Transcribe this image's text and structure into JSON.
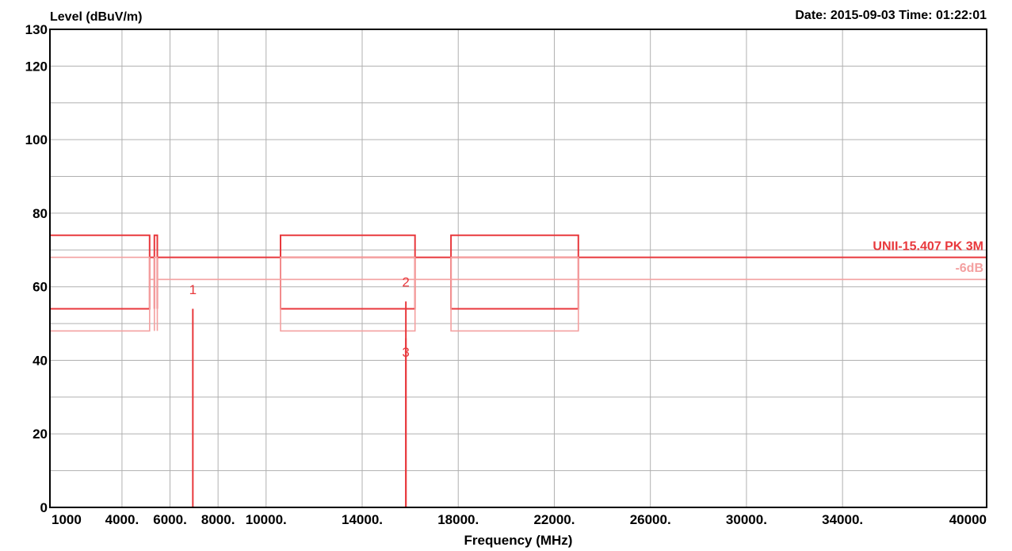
{
  "header": {
    "ylabel": "Level (dBuV/m)",
    "datetime": "Date: 2015-09-03  Time: 01:22:01"
  },
  "chart_data": {
    "type": "line",
    "xlabel": "Frequency (MHz)",
    "ylabel": "Level (dBuV/m)",
    "xlim": [
      1000,
      40000
    ],
    "ylim": [
      0,
      130
    ],
    "grid": true,
    "x_tick_labels": [
      {
        "v": 1000,
        "t": "1000"
      },
      {
        "v": 4000,
        "t": "4000."
      },
      {
        "v": 6000,
        "t": "6000."
      },
      {
        "v": 8000,
        "t": "8000."
      },
      {
        "v": 10000,
        "t": "10000."
      },
      {
        "v": 14000,
        "t": "14000."
      },
      {
        "v": 18000,
        "t": "18000."
      },
      {
        "v": 22000,
        "t": "22000."
      },
      {
        "v": 26000,
        "t": "26000."
      },
      {
        "v": 30000,
        "t": "30000."
      },
      {
        "v": 34000,
        "t": "34000."
      },
      {
        "v": 40000,
        "t": "40000"
      }
    ],
    "x_grid": [
      1000,
      4000,
      6000,
      8000,
      10000,
      14000,
      18000,
      22000,
      26000,
      30000,
      34000,
      40000
    ],
    "y_ticks": [
      0,
      20,
      40,
      60,
      80,
      100,
      120,
      130
    ],
    "y_grid": [
      0,
      10,
      20,
      30,
      40,
      50,
      60,
      70,
      80,
      90,
      100,
      110,
      120,
      130
    ],
    "series": [
      {
        "name": "UNII-15.407 PK 3M",
        "color": "#e8383c",
        "width": 2,
        "points": [
          [
            1000,
            74
          ],
          [
            5150,
            74
          ],
          [
            5150,
            54
          ],
          [
            1000,
            54
          ],
          [
            5150,
            54
          ],
          [
            5150,
            68
          ],
          [
            5350,
            68
          ],
          [
            5350,
            74
          ],
          [
            5350,
            54
          ],
          [
            5350,
            74
          ],
          [
            5470,
            74
          ],
          [
            5470,
            54
          ],
          [
            5470,
            68
          ],
          [
            10600,
            68
          ],
          [
            10600,
            74
          ],
          [
            16200,
            74
          ],
          [
            16200,
            54
          ],
          [
            10600,
            54
          ],
          [
            10600,
            68
          ],
          [
            16200,
            68
          ],
          [
            17700,
            68
          ],
          [
            17700,
            74
          ],
          [
            23000,
            74
          ],
          [
            23000,
            54
          ],
          [
            17700,
            54
          ],
          [
            17700,
            68
          ],
          [
            23000,
            68
          ],
          [
            40000,
            68
          ]
        ]
      },
      {
        "name": "-6dB",
        "color": "#f4a0a0",
        "width": 1.6,
        "points": [
          [
            1000,
            68
          ],
          [
            5150,
            68
          ],
          [
            5150,
            48
          ],
          [
            1000,
            48
          ],
          [
            5150,
            48
          ],
          [
            5150,
            62
          ],
          [
            5350,
            62
          ],
          [
            5350,
            68
          ],
          [
            5350,
            48
          ],
          [
            5350,
            68
          ],
          [
            5470,
            68
          ],
          [
            5470,
            48
          ],
          [
            5470,
            62
          ],
          [
            10600,
            62
          ],
          [
            10600,
            68
          ],
          [
            16200,
            68
          ],
          [
            16200,
            48
          ],
          [
            10600,
            48
          ],
          [
            10600,
            62
          ],
          [
            16200,
            62
          ],
          [
            17700,
            62
          ],
          [
            17700,
            68
          ],
          [
            23000,
            68
          ],
          [
            23000,
            48
          ],
          [
            17700,
            48
          ],
          [
            17700,
            62
          ],
          [
            23000,
            62
          ],
          [
            40000,
            62
          ]
        ]
      }
    ],
    "series_labels": [
      {
        "text": "UNII-15.407 PK 3M",
        "y": 70,
        "color": "#e8383c"
      },
      {
        "text": "-6dB",
        "y": 64,
        "color": "#f4a0a0"
      }
    ],
    "markers": [
      {
        "label": "1",
        "x": 6950,
        "y": 54,
        "label_y": 58
      },
      {
        "label": "2",
        "x": 15820,
        "y": 56,
        "label_y": 60
      },
      {
        "label": "3",
        "x": 15820,
        "y": 46,
        "label_y": 41
      }
    ],
    "marker_color": "#e8383c"
  }
}
